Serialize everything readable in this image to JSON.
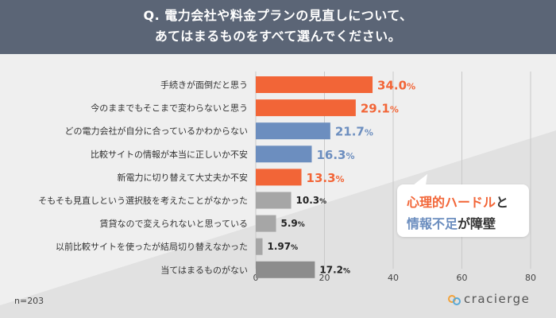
{
  "header": {
    "question_line1": "Q. 電力会社や料金プランの見直しについて、",
    "question_line2": "あてはまるものをすべて選んでください。"
  },
  "colors": {
    "header_bg": "#5b6576",
    "orange": "#f26537",
    "blue": "#6c8ebf",
    "gray": "#a6a6a6",
    "dark_gray": "#8c8c8c"
  },
  "chart_data": {
    "type": "bar",
    "orientation": "horizontal",
    "categories": [
      "手続きが面倒だと思う",
      "今のままでもそこまで変わらないと思う",
      "どの電力会社が自分に合っているかわからない",
      "比較サイトの情報が本当に正しいか不安",
      "新電力に切り替えて大丈夫か不安",
      "そもそも見直しという選択肢を考えたことがなかった",
      "賃貸なので変えられないと思っている",
      "以前比較サイトを使ったが結局切り替えなかった",
      "当てはまるものがない"
    ],
    "values": [
      34.0,
      29.1,
      21.7,
      16.3,
      13.3,
      10.3,
      5.9,
      1.97,
      17.2
    ],
    "value_labels": [
      "34.0",
      "29.1",
      "21.7",
      "16.3",
      "13.3",
      "10.3",
      "5.9",
      "1.97",
      "17.2"
    ],
    "unit": "%",
    "bar_colors": [
      "orange",
      "orange",
      "blue",
      "blue",
      "orange",
      "gray",
      "gray",
      "gray",
      "dark_gray"
    ],
    "xlim": [
      0,
      80
    ],
    "xticks": [
      "0",
      "20",
      "40",
      "60",
      "80"
    ],
    "grid": true
  },
  "callout": {
    "part1": "心理的ハードル",
    "part2": "と",
    "part3": "情報不足",
    "part4": "が障壁"
  },
  "footer": {
    "sample_size": "n=203",
    "brand": "cracierge"
  }
}
